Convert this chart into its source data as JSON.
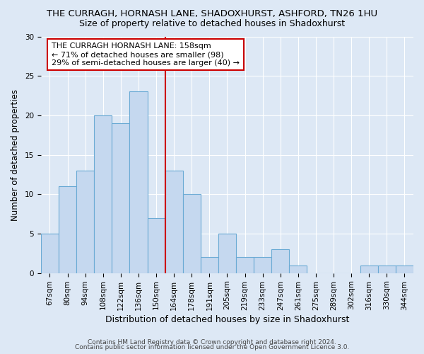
{
  "title1": "THE CURRAGH, HORNASH LANE, SHADOXHURST, ASHFORD, TN26 1HU",
  "title2": "Size of property relative to detached houses in Shadoxhurst",
  "xlabel": "Distribution of detached houses by size in Shadoxhurst",
  "ylabel": "Number of detached properties",
  "categories": [
    "67sqm",
    "80sqm",
    "94sqm",
    "108sqm",
    "122sqm",
    "136sqm",
    "150sqm",
    "164sqm",
    "178sqm",
    "191sqm",
    "205sqm",
    "219sqm",
    "233sqm",
    "247sqm",
    "261sqm",
    "275sqm",
    "289sqm",
    "302sqm",
    "316sqm",
    "330sqm",
    "344sqm"
  ],
  "values": [
    5,
    11,
    13,
    20,
    19,
    23,
    7,
    13,
    10,
    2,
    5,
    2,
    2,
    3,
    1,
    0,
    0,
    0,
    1,
    1,
    1
  ],
  "bar_color": "#c5d8ef",
  "bar_edge_color": "#6aaad4",
  "vline_x": 6.5,
  "vline_color": "#cc0000",
  "annotation_line1": "THE CURRAGH HORNASH LANE: 158sqm",
  "annotation_line2": "← 71% of detached houses are smaller (98)",
  "annotation_line3": "29% of semi-detached houses are larger (40) →",
  "annotation_box_color": "#ffffff",
  "annotation_border_color": "#cc0000",
  "ylim": [
    0,
    30
  ],
  "yticks": [
    0,
    5,
    10,
    15,
    20,
    25,
    30
  ],
  "background_color": "#dde8f5",
  "footer1": "Contains HM Land Registry data © Crown copyright and database right 2024.",
  "footer2": "Contains public sector information licensed under the Open Government Licence 3.0.",
  "title1_fontsize": 9.5,
  "title2_fontsize": 9,
  "xlabel_fontsize": 9,
  "ylabel_fontsize": 8.5,
  "tick_fontsize": 7.5,
  "annotation_fontsize": 8,
  "footer_fontsize": 6.5
}
